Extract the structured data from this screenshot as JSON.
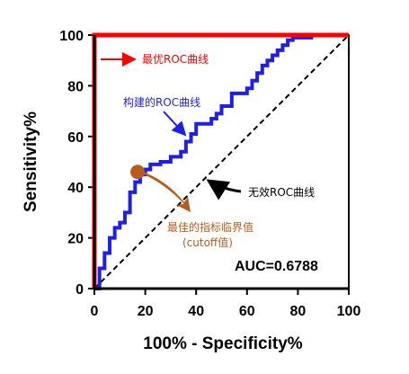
{
  "chart_data": {
    "type": "line",
    "xlabel": "100% - Specificity%",
    "ylabel": "Sensitivity%",
    "xlim": [
      0,
      100
    ],
    "ylim": [
      0,
      100
    ],
    "xticks": [
      "0",
      "20",
      "40",
      "60",
      "80",
      "100"
    ],
    "yticks": [
      "0",
      "20",
      "40",
      "60",
      "80",
      "100"
    ],
    "series": [
      {
        "key": "optimal",
        "color": "#ff0000",
        "x": [
          0,
          0,
          100
        ],
        "y": [
          0,
          100,
          100
        ]
      },
      {
        "key": "constructed",
        "color": "#1f1fe6",
        "x": [
          0,
          2,
          2,
          4,
          4,
          6,
          6,
          8,
          8,
          10,
          10,
          12,
          12,
          14,
          14,
          16,
          16,
          18,
          18,
          20,
          20,
          22,
          22,
          26,
          26,
          30,
          30,
          34,
          34,
          36,
          36,
          38,
          38,
          40,
          40,
          46,
          46,
          48,
          48,
          50,
          50,
          54,
          54,
          60,
          60,
          62,
          62,
          64,
          64,
          66,
          66,
          68,
          68,
          70,
          70,
          72,
          72,
          74,
          74,
          76,
          76,
          78,
          78,
          86
        ],
        "y": [
          0,
          0,
          8,
          8,
          14,
          14,
          20,
          20,
          24,
          24,
          26,
          26,
          30,
          30,
          38,
          38,
          42,
          42,
          45,
          45,
          47,
          47,
          49,
          49,
          50,
          50,
          52,
          52,
          54,
          54,
          58,
          58,
          61,
          61,
          65,
          65,
          67,
          67,
          69,
          69,
          72,
          72,
          77,
          77,
          79,
          79,
          82,
          82,
          85,
          85,
          88,
          88,
          90,
          90,
          92,
          92,
          94,
          94,
          96,
          96,
          98,
          98,
          99,
          99
        ]
      },
      {
        "key": "reference",
        "color": "#000000",
        "x": [
          0,
          100
        ],
        "y": [
          0,
          100
        ]
      }
    ],
    "cutoff_point": {
      "x": 17,
      "y": 46,
      "color": "#b85c1e"
    },
    "annotations": {
      "optimal": "最优ROC曲线",
      "constructed": "构建的ROC曲线",
      "reference": "无效ROC曲线",
      "cutoff_line1": "最佳的指标临界值",
      "cutoff_line2": "(cutoff值)"
    },
    "auc_text": "AUC=0.6788"
  }
}
